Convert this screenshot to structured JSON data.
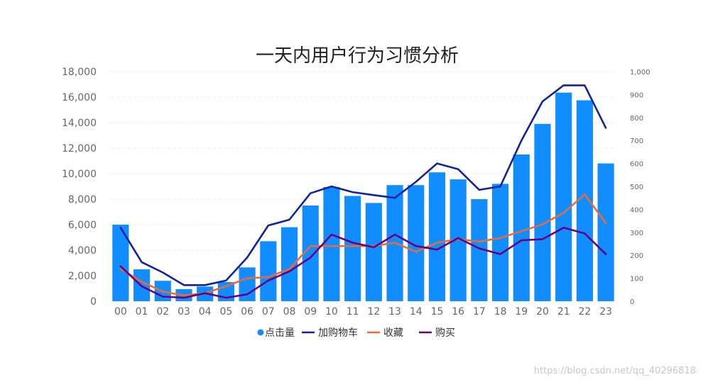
{
  "chart_data": {
    "type": "bar",
    "title": "一天内用户行为习惯分析",
    "categories": [
      "00",
      "01",
      "02",
      "03",
      "04",
      "05",
      "06",
      "07",
      "08",
      "09",
      "10",
      "11",
      "12",
      "13",
      "14",
      "15",
      "16",
      "17",
      "18",
      "19",
      "20",
      "21",
      "22",
      "23"
    ],
    "y_left": {
      "ylim": [
        0,
        18000
      ],
      "ticks": [
        "0",
        "2,000",
        "4,000",
        "6,000",
        "8,000",
        "10,000",
        "12,000",
        "14,000",
        "16,000",
        "18,000"
      ]
    },
    "y_right": {
      "ylim": [
        0,
        1000
      ],
      "ticks": [
        "0",
        "100",
        "200",
        "300",
        "400",
        "500",
        "600",
        "700",
        "800",
        "900",
        "1,000"
      ]
    },
    "grid": true,
    "legend_position": "bottom-center",
    "series": [
      {
        "name": "点击量",
        "type": "bar",
        "axis": "left",
        "color": "#118DFF",
        "values": [
          6000,
          2500,
          1600,
          950,
          1150,
          1500,
          2650,
          4700,
          5800,
          7500,
          8950,
          8250,
          7700,
          9100,
          9100,
          10100,
          9550,
          8000,
          9200,
          11500,
          13900,
          16350,
          15750,
          10800
        ]
      },
      {
        "name": "加购物车",
        "type": "line",
        "axis": "right",
        "color": "#12239E",
        "values": [
          320,
          170,
          125,
          70,
          70,
          90,
          190,
          330,
          355,
          470,
          500,
          475,
          462,
          450,
          520,
          600,
          575,
          485,
          500,
          700,
          870,
          940,
          940,
          755
        ]
      },
      {
        "name": "收藏",
        "type": "line",
        "axis": "right",
        "color": "#E66C37",
        "values": [
          140,
          85,
          42,
          25,
          35,
          65,
          100,
          105,
          140,
          240,
          240,
          240,
          240,
          255,
          215,
          255,
          270,
          260,
          275,
          305,
          335,
          385,
          465,
          340
        ]
      },
      {
        "name": "购买",
        "type": "line",
        "axis": "right",
        "color": "#6B007B",
        "values": [
          152,
          65,
          20,
          15,
          35,
          15,
          30,
          90,
          130,
          190,
          290,
          255,
          235,
          290,
          240,
          225,
          275,
          230,
          205,
          265,
          270,
          320,
          295,
          205
        ]
      }
    ]
  },
  "watermark": "https://blog.csdn.net/qq_40296818"
}
